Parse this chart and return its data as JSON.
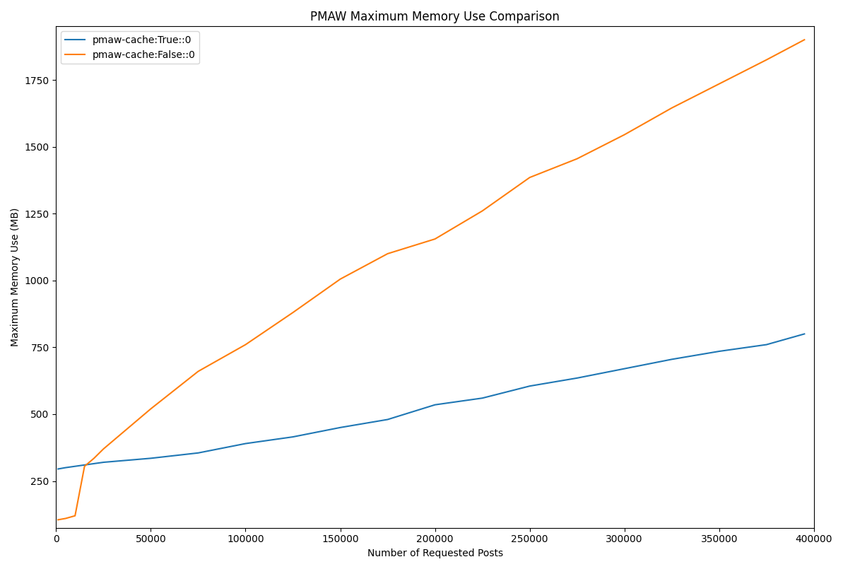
{
  "title": "PMAW Maximum Memory Use Comparison",
  "xlabel": "Number of Requested Posts",
  "ylabel": "Maximum Memory Use (MB)",
  "series": [
    {
      "label": "pmaw-cache:True::0",
      "color": "#1f77b4",
      "x": [
        1000,
        5000,
        10000,
        15000,
        20000,
        25000,
        50000,
        75000,
        100000,
        125000,
        150000,
        175000,
        200000,
        225000,
        250000,
        275000,
        300000,
        325000,
        350000,
        375000,
        395000
      ],
      "y": [
        295,
        300,
        305,
        310,
        315,
        320,
        335,
        355,
        390,
        415,
        450,
        480,
        535,
        560,
        605,
        635,
        670,
        705,
        735,
        760,
        800
      ]
    },
    {
      "label": "pmaw-cache:False::0",
      "color": "#ff7f0e",
      "x": [
        1000,
        5000,
        10000,
        15000,
        20000,
        25000,
        50000,
        75000,
        100000,
        125000,
        150000,
        175000,
        200000,
        225000,
        250000,
        275000,
        300000,
        325000,
        350000,
        375000,
        395000
      ],
      "y": [
        105,
        110,
        120,
        305,
        335,
        370,
        520,
        660,
        760,
        880,
        1005,
        1100,
        1155,
        1260,
        1385,
        1455,
        1545,
        1645,
        1735,
        1825,
        1900
      ]
    }
  ],
  "xlim": [
    0,
    400000
  ],
  "ylim_bottom": 75,
  "ylim_top": 1950,
  "yticks": [
    250,
    500,
    750,
    1000,
    1250,
    1500,
    1750
  ],
  "xticks": [
    0,
    50000,
    100000,
    150000,
    200000,
    250000,
    300000,
    350000,
    400000
  ],
  "legend_loc": "upper left",
  "figsize": [
    11.93,
    8.05
  ],
  "dpi": 100
}
